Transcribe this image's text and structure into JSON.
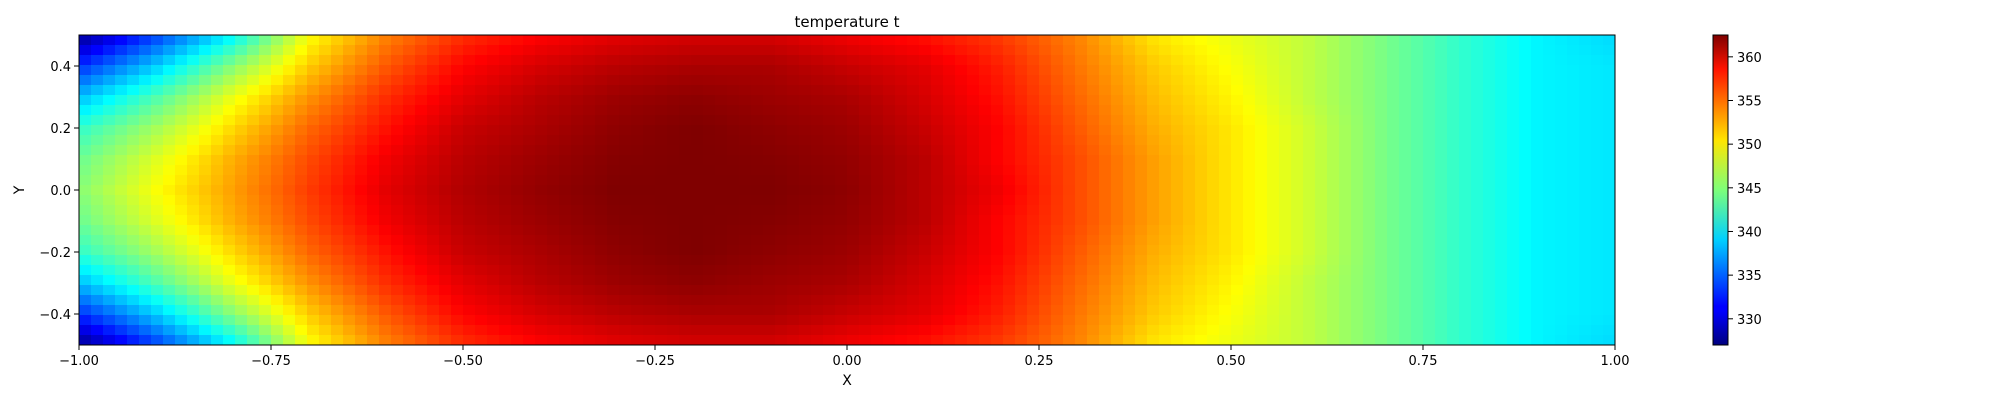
{
  "chart_data": {
    "type": "heatmap",
    "title": "temperature t",
    "xlabel": "X",
    "ylabel": "Y",
    "xlim": [
      -1.0,
      1.0
    ],
    "ylim": [
      -0.5,
      0.5
    ],
    "x_ticks": [
      {
        "value": -1.0,
        "label": "−1.00"
      },
      {
        "value": -0.75,
        "label": "−0.75"
      },
      {
        "value": -0.5,
        "label": "−0.50"
      },
      {
        "value": -0.25,
        "label": "−0.25"
      },
      {
        "value": 0.0,
        "label": "0.00"
      },
      {
        "value": 0.25,
        "label": "0.25"
      },
      {
        "value": 0.5,
        "label": "0.50"
      },
      {
        "value": 0.75,
        "label": "0.75"
      },
      {
        "value": 1.0,
        "label": "1.00"
      }
    ],
    "y_ticks": [
      {
        "value": -0.4,
        "label": "−0.4"
      },
      {
        "value": -0.2,
        "label": "−0.2"
      },
      {
        "value": 0.0,
        "label": "0.0"
      },
      {
        "value": 0.2,
        "label": "0.2"
      },
      {
        "value": 0.4,
        "label": "0.4"
      }
    ],
    "colorbar": {
      "vmin": 327.0,
      "vmax": 362.5,
      "colormap": "jet",
      "ticks": [
        {
          "value": 330,
          "label": "330"
        },
        {
          "value": 335,
          "label": "335"
        },
        {
          "value": 340,
          "label": "340"
        },
        {
          "value": 345,
          "label": "345"
        },
        {
          "value": 350,
          "label": "350"
        },
        {
          "value": 355,
          "label": "355"
        },
        {
          "value": 360,
          "label": "360"
        }
      ]
    },
    "field": {
      "x": [
        -1.0,
        -0.9,
        -0.8,
        -0.7,
        -0.6,
        -0.5,
        -0.4,
        -0.3,
        -0.2,
        -0.1,
        0.0,
        0.1,
        0.2,
        0.3,
        0.4,
        0.5,
        0.6,
        0.7,
        0.8,
        0.9,
        1.0
      ],
      "y": [
        0.5,
        0.4,
        0.3,
        0.2,
        0.1,
        0.0,
        -0.1,
        -0.2,
        -0.3,
        -0.4,
        -0.5
      ],
      "values": [
        [
          327.5,
          333.5,
          340.0,
          349.0,
          353.5,
          356.5,
          358.0,
          359.0,
          359.5,
          359.5,
          358.5,
          357.5,
          356.0,
          353.5,
          350.0,
          348.5,
          347.0,
          344.5,
          342.0,
          340.0,
          339.0
        ],
        [
          333.0,
          338.5,
          345.0,
          351.0,
          355.0,
          358.0,
          359.5,
          360.5,
          361.0,
          361.0,
          360.0,
          359.0,
          357.0,
          354.0,
          351.0,
          349.0,
          347.0,
          344.5,
          342.0,
          340.0,
          339.5
        ],
        [
          338.0,
          343.0,
          348.5,
          353.0,
          356.5,
          359.0,
          360.5,
          361.5,
          362.0,
          361.5,
          361.0,
          359.5,
          357.5,
          354.5,
          351.5,
          349.5,
          347.0,
          344.5,
          342.0,
          340.0,
          339.5
        ],
        [
          342.0,
          346.0,
          350.5,
          354.5,
          357.5,
          360.0,
          361.0,
          362.0,
          362.5,
          362.0,
          361.5,
          360.0,
          358.0,
          355.0,
          352.0,
          350.0,
          347.5,
          344.5,
          342.0,
          340.0,
          339.5
        ],
        [
          344.0,
          348.0,
          352.0,
          355.5,
          358.5,
          360.5,
          361.5,
          362.3,
          362.5,
          362.3,
          361.8,
          360.5,
          358.0,
          355.5,
          352.5,
          350.0,
          347.5,
          344.5,
          342.0,
          340.0,
          339.5
        ],
        [
          345.0,
          349.0,
          352.5,
          356.0,
          359.0,
          360.8,
          361.8,
          362.5,
          362.5,
          362.5,
          362.0,
          360.5,
          358.5,
          355.5,
          352.5,
          350.0,
          347.5,
          344.5,
          342.0,
          340.0,
          339.5
        ],
        [
          344.0,
          348.0,
          352.0,
          355.5,
          358.5,
          360.5,
          361.5,
          362.3,
          362.5,
          362.3,
          361.8,
          360.5,
          358.0,
          355.5,
          352.5,
          350.0,
          347.5,
          344.5,
          342.0,
          340.0,
          339.5
        ],
        [
          342.0,
          346.0,
          350.5,
          354.5,
          357.5,
          360.0,
          361.0,
          362.0,
          362.5,
          362.0,
          361.5,
          360.0,
          358.0,
          355.0,
          352.0,
          350.0,
          347.5,
          344.5,
          342.0,
          340.0,
          339.5
        ],
        [
          338.0,
          343.0,
          348.5,
          353.0,
          356.5,
          359.0,
          360.5,
          361.5,
          362.0,
          361.5,
          361.0,
          359.5,
          357.5,
          354.5,
          351.5,
          349.5,
          347.0,
          344.5,
          342.0,
          340.0,
          339.5
        ],
        [
          333.0,
          338.5,
          345.0,
          351.0,
          355.0,
          358.0,
          359.5,
          360.5,
          361.0,
          361.0,
          360.0,
          359.0,
          357.0,
          354.0,
          351.0,
          349.0,
          347.0,
          344.5,
          342.0,
          340.0,
          339.5
        ],
        [
          327.5,
          333.5,
          340.0,
          349.0,
          353.5,
          356.5,
          358.0,
          359.0,
          359.5,
          359.5,
          358.5,
          357.5,
          356.0,
          353.5,
          350.0,
          348.5,
          347.0,
          344.5,
          342.0,
          340.0,
          339.0
        ]
      ]
    },
    "grid": false,
    "legend": "none"
  }
}
